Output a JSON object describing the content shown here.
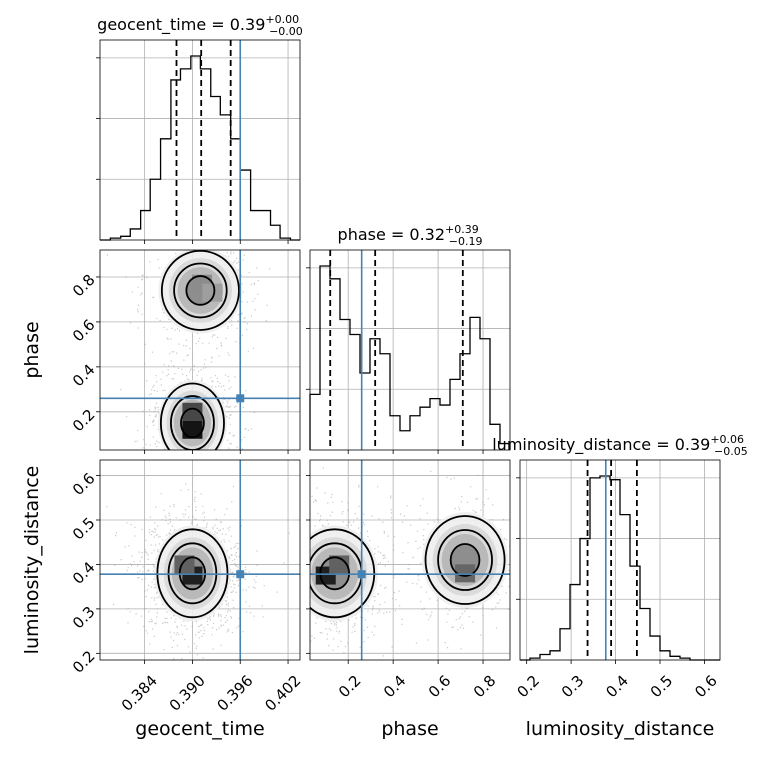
{
  "chart_data": {
    "type": "corner",
    "truth_color": "#4682b4",
    "line_color": "#000000",
    "grid": true,
    "parameters": [
      {
        "name": "geocent_time",
        "axis_label": "geocent_time",
        "range": [
          0.3784,
          0.4035
        ],
        "ticks": [
          0.384,
          0.39,
          0.396,
          0.402
        ],
        "tick_labels": [
          "0.384",
          "0.390",
          "0.396",
          "0.402"
        ],
        "truth": 0.396,
        "quantiles": [
          0.388,
          0.3911,
          0.3948
        ],
        "title": {
          "name": "geocent_time",
          "median": "0.39",
          "plus": "+0.00",
          "minus": "−0.00"
        },
        "histogram": {
          "edges": [
            0.3784,
            0.3797,
            0.381,
            0.3822,
            0.3835,
            0.3847,
            0.386,
            0.3873,
            0.3885,
            0.3898,
            0.391,
            0.3923,
            0.3935,
            0.3948,
            0.396,
            0.3973,
            0.3985,
            0.3998,
            0.401,
            0.4023,
            0.4035
          ],
          "counts": [
            0,
            0.01,
            0.02,
            0.06,
            0.16,
            0.33,
            0.55,
            0.87,
            0.93,
            1.0,
            0.93,
            0.78,
            0.68,
            0.55,
            0.38,
            0.16,
            0.16,
            0.08,
            0.01,
            0
          ]
        }
      },
      {
        "name": "phase",
        "axis_label": "phase",
        "range": [
          0.03,
          0.92
        ],
        "ticks": [
          0.2,
          0.4,
          0.6,
          0.8
        ],
        "tick_labels": [
          "0.2",
          "0.4",
          "0.6",
          "0.8"
        ],
        "truth": 0.26,
        "quantiles": [
          0.12,
          0.32,
          0.71
        ],
        "title": {
          "name": "phase",
          "median": "0.32",
          "plus": "+0.39",
          "minus": "−0.19"
        },
        "histogram": {
          "edges": [
            0.03,
            0.0745,
            0.119,
            0.1635,
            0.208,
            0.2525,
            0.297,
            0.3415,
            0.386,
            0.4305,
            0.475,
            0.5195,
            0.564,
            0.6085,
            0.653,
            0.6975,
            0.742,
            0.7865,
            0.831,
            0.8755,
            0.92
          ],
          "counts": [
            0.26,
            0.86,
            0.8,
            0.61,
            0.54,
            0.36,
            0.52,
            0.45,
            0.16,
            0.09,
            0.16,
            0.2,
            0.24,
            0.21,
            0.33,
            0.45,
            0.62,
            0.52,
            0.12,
            0.03
          ]
        }
      },
      {
        "name": "luminosity_distance",
        "axis_label": "luminosity_distance",
        "range": [
          0.185,
          0.635
        ],
        "ticks": [
          0.2,
          0.3,
          0.4,
          0.5,
          0.6
        ],
        "tick_labels": [
          "0.2",
          "0.3",
          "0.4",
          "0.5",
          "0.6"
        ],
        "truth": 0.378,
        "quantiles": [
          0.337,
          0.39,
          0.448
        ],
        "title": {
          "name": "luminosity_distance",
          "median": "0.39",
          "plus": "+0.06",
          "minus": "−0.05"
        },
        "histogram": {
          "edges": [
            0.185,
            0.2075,
            0.23,
            0.2525,
            0.275,
            0.2975,
            0.32,
            0.3425,
            0.365,
            0.3875,
            0.41,
            0.4325,
            0.455,
            0.4775,
            0.5,
            0.5225,
            0.545,
            0.5675,
            0.59,
            0.6125,
            0.635
          ],
          "counts": [
            0,
            0.01,
            0.03,
            0.05,
            0.17,
            0.41,
            0.66,
            0.99,
            1.0,
            0.98,
            0.79,
            0.51,
            0.28,
            0.13,
            0.05,
            0.02,
            0.01,
            0,
            0,
            0
          ]
        }
      }
    ],
    "pairs": [
      {
        "x_param": "geocent_time",
        "y_param": "phase",
        "x_range": [
          0.3784,
          0.4035
        ],
        "y_range": [
          0.03,
          0.92
        ],
        "blobs": [
          {
            "x": 0.39,
            "y": 0.15,
            "sx": 0.0018,
            "sy": 0.08,
            "w": 0.62
          },
          {
            "x": 0.391,
            "y": 0.74,
            "sx": 0.0022,
            "sy": 0.08,
            "w": 0.38
          }
        ],
        "peaks": [
          {
            "x": 0.39,
            "y": 0.12,
            "shade": 0.92
          },
          {
            "x": 0.39,
            "y": 0.2,
            "shade": 0.72
          },
          {
            "x": 0.3912,
            "y": 0.77,
            "shade": 0.45
          },
          {
            "x": 0.3925,
            "y": 0.73,
            "shade": 0.38
          }
        ]
      },
      {
        "x_param": "geocent_time",
        "y_param": "luminosity_distance",
        "x_range": [
          0.3784,
          0.4035
        ],
        "y_range": [
          0.185,
          0.635
        ],
        "blobs": [
          {
            "x": 0.39,
            "y": 0.38,
            "sx": 0.002,
            "sy": 0.045,
            "w": 1.0
          }
        ],
        "peaks": [
          {
            "x": 0.39,
            "y": 0.375,
            "shade": 0.88
          },
          {
            "x": 0.389,
            "y": 0.4,
            "shade": 0.62
          }
        ]
      },
      {
        "x_param": "phase",
        "y_param": "luminosity_distance",
        "x_range": [
          0.03,
          0.92
        ],
        "y_range": [
          0.185,
          0.635
        ],
        "blobs": [
          {
            "x": 0.14,
            "y": 0.38,
            "sx": 0.08,
            "sy": 0.045,
            "w": 0.6
          },
          {
            "x": 0.72,
            "y": 0.41,
            "sx": 0.08,
            "sy": 0.045,
            "w": 0.4
          }
        ],
        "peaks": [
          {
            "x": 0.1,
            "y": 0.375,
            "shade": 0.88
          },
          {
            "x": 0.16,
            "y": 0.4,
            "shade": 0.62
          },
          {
            "x": 0.72,
            "y": 0.38,
            "shade": 0.6
          }
        ]
      }
    ]
  }
}
